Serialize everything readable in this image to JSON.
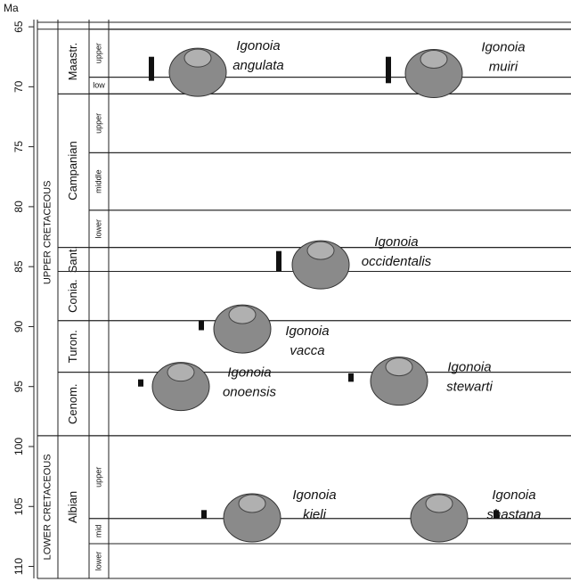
{
  "chart_data": {
    "type": "range",
    "y_label": "Ma",
    "ylim": [
      64.4,
      111
    ],
    "yticks": [
      65,
      70,
      75,
      80,
      85,
      90,
      95,
      100,
      105,
      110
    ],
    "color": "#111111",
    "periods": [
      {
        "name": "UPPER CRETACEOUS",
        "range": [
          65.2,
          99.1
        ]
      },
      {
        "name": "LOWER CRETACEOUS",
        "range": [
          99.1,
          111
        ]
      }
    ],
    "stages": [
      {
        "name": "Maastr.",
        "range": [
          65.2,
          70.6
        ]
      },
      {
        "name": "Campanian",
        "range": [
          70.6,
          83.4
        ]
      },
      {
        "name": "Sant.",
        "range": [
          83.4,
          85.4
        ]
      },
      {
        "name": "Conia.",
        "range": [
          85.4,
          89.5
        ]
      },
      {
        "name": "Turon.",
        "range": [
          89.5,
          93.8
        ]
      },
      {
        "name": "Cenom.",
        "range": [
          93.8,
          99.1
        ]
      },
      {
        "name": "Albian",
        "range": [
          99.1,
          111
        ]
      }
    ],
    "substages": [
      {
        "name": "upper",
        "range": [
          65.2,
          69.2
        ]
      },
      {
        "name": "low",
        "range": [
          69.2,
          70.6
        ]
      },
      {
        "name": "upper",
        "range": [
          70.6,
          75.5
        ]
      },
      {
        "name": "middle",
        "range": [
          75.5,
          80.3
        ]
      },
      {
        "name": "lower",
        "range": [
          80.3,
          83.4
        ]
      },
      {
        "name": "upper",
        "range": [
          99.1,
          106.0
        ]
      },
      {
        "name": "mid",
        "range": [
          106.0,
          108.1
        ]
      },
      {
        "name": "lower",
        "range": [
          108.1,
          111
        ]
      }
    ],
    "series": [
      {
        "genus": "Igonoia",
        "species": "angulata",
        "range": [
          67.5,
          69.5
        ]
      },
      {
        "genus": "Igonoia",
        "species": "muiri",
        "range": [
          67.5,
          69.7
        ]
      },
      {
        "genus": "Igonoia",
        "species": "occidentalis",
        "range": [
          83.7,
          85.4
        ]
      },
      {
        "genus": "Igonoia",
        "species": "vacca",
        "range": [
          89.5,
          90.3
        ]
      },
      {
        "genus": "Igonoia",
        "species": "onoensis",
        "range": [
          94.4,
          95.0
        ]
      },
      {
        "genus": "Igonoia",
        "species": "stewarti",
        "range": [
          93.9,
          94.6
        ]
      },
      {
        "genus": "Igonoia",
        "species": "kieli",
        "range": [
          105.3,
          106.0
        ]
      },
      {
        "genus": "Igonoia",
        "species": "shastana",
        "range": [
          105.3,
          106.0
        ]
      }
    ]
  }
}
